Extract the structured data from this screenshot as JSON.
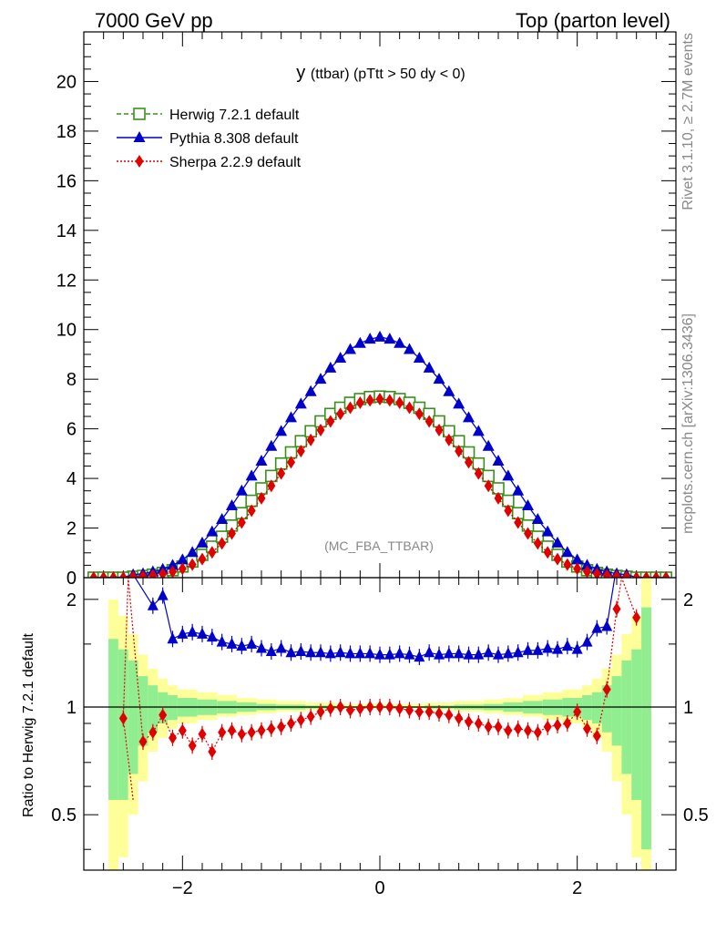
{
  "header": {
    "left": "7000 GeV pp",
    "right": "Top (parton level)"
  },
  "side_labels": {
    "rivet": "Rivet 3.1.10, ≥ 2.7M events",
    "mcplots": "mcplots.cern.ch [arXiv:1306.3436]"
  },
  "plot": {
    "title_main": "y",
    "title_sub": "(ttbar) (pTtt > 50 dy < 0)",
    "watermark": "(MC_FBA_TTBAR)"
  },
  "chart_data": [
    {
      "type": "line",
      "panel": "main",
      "xlim": [
        -3.0,
        3.0
      ],
      "ylim": [
        0,
        22
      ],
      "yticks": [
        0,
        2,
        4,
        6,
        8,
        10,
        12,
        14,
        16,
        18,
        20
      ],
      "xticks": [
        -2,
        0,
        2
      ],
      "legend_position": "top-left",
      "series": [
        {
          "name": "Herwig 7.2.1 default",
          "color": "#3a8f1a",
          "marker": "open-square",
          "line": "dashed",
          "x": [
            -2.5,
            -2.4,
            -2.3,
            -2.2,
            -2.1,
            -2.0,
            -1.9,
            -1.8,
            -1.7,
            -1.6,
            -1.5,
            -1.4,
            -1.3,
            -1.2,
            -1.1,
            -1.0,
            -0.9,
            -0.8,
            -0.7,
            -0.6,
            -0.5,
            -0.4,
            -0.3,
            -0.2,
            -0.1,
            0.0,
            0.1,
            0.2,
            0.3,
            0.4,
            0.5,
            0.6,
            0.7,
            0.8,
            0.9,
            1.0,
            1.1,
            1.2,
            1.3,
            1.4,
            1.5,
            1.6,
            1.7,
            1.8,
            1.9,
            2.0,
            2.1,
            2.2,
            2.3,
            2.4,
            2.5
          ],
          "y": [
            0.04,
            0.07,
            0.12,
            0.19,
            0.3,
            0.45,
            0.65,
            0.92,
            1.25,
            1.65,
            2.1,
            2.6,
            3.1,
            3.6,
            4.1,
            4.6,
            5.05,
            5.5,
            5.9,
            6.3,
            6.6,
            6.85,
            7.05,
            7.2,
            7.28,
            7.3,
            7.28,
            7.2,
            7.05,
            6.85,
            6.6,
            6.3,
            5.9,
            5.5,
            5.05,
            4.6,
            4.1,
            3.6,
            3.1,
            2.6,
            2.1,
            1.65,
            1.25,
            0.92,
            0.65,
            0.45,
            0.3,
            0.19,
            0.12,
            0.07,
            0.04
          ]
        },
        {
          "name": "Pythia 8.308 default",
          "color": "#0000cc",
          "marker": "filled-triangle",
          "line": "solid",
          "x": [
            -2.5,
            -2.4,
            -2.3,
            -2.2,
            -2.1,
            -2.0,
            -1.9,
            -1.8,
            -1.7,
            -1.6,
            -1.5,
            -1.4,
            -1.3,
            -1.2,
            -1.1,
            -1.0,
            -0.9,
            -0.8,
            -0.7,
            -0.6,
            -0.5,
            -0.4,
            -0.3,
            -0.2,
            -0.1,
            0.0,
            0.1,
            0.2,
            0.3,
            0.4,
            0.5,
            0.6,
            0.7,
            0.8,
            0.9,
            1.0,
            1.1,
            1.2,
            1.3,
            1.4,
            1.5,
            1.6,
            1.7,
            1.8,
            1.9,
            2.0,
            2.1,
            2.2,
            2.3,
            2.4,
            2.5
          ],
          "y": [
            0.12,
            0.16,
            0.24,
            0.34,
            0.5,
            0.72,
            1.02,
            1.4,
            1.85,
            2.35,
            2.9,
            3.5,
            4.1,
            4.7,
            5.3,
            5.9,
            6.45,
            7.0,
            7.5,
            8.0,
            8.45,
            8.85,
            9.2,
            9.45,
            9.62,
            9.7,
            9.62,
            9.45,
            9.2,
            8.85,
            8.45,
            8.0,
            7.5,
            7.0,
            6.45,
            5.9,
            5.3,
            4.7,
            4.1,
            3.5,
            2.9,
            2.35,
            1.85,
            1.4,
            1.02,
            0.72,
            0.5,
            0.34,
            0.24,
            0.16,
            0.12
          ]
        },
        {
          "name": "Sherpa 2.2.9 default",
          "color": "#e00000",
          "marker": "filled-diamond",
          "line": "dotted",
          "x": [
            -2.5,
            -2.4,
            -2.3,
            -2.2,
            -2.1,
            -2.0,
            -1.9,
            -1.8,
            -1.7,
            -1.6,
            -1.5,
            -1.4,
            -1.3,
            -1.2,
            -1.1,
            -1.0,
            -0.9,
            -0.8,
            -0.7,
            -0.6,
            -0.5,
            -0.4,
            -0.3,
            -0.2,
            -0.1,
            0.0,
            0.1,
            0.2,
            0.3,
            0.4,
            0.5,
            0.6,
            0.7,
            0.8,
            0.9,
            1.0,
            1.1,
            1.2,
            1.3,
            1.4,
            1.5,
            1.6,
            1.7,
            1.8,
            1.9,
            2.0,
            2.1,
            2.2,
            2.3,
            2.4,
            2.5
          ],
          "y": [
            0.03,
            0.05,
            0.09,
            0.15,
            0.24,
            0.36,
            0.53,
            0.75,
            1.02,
            1.38,
            1.78,
            2.22,
            2.7,
            3.2,
            3.7,
            4.2,
            4.65,
            5.1,
            5.55,
            5.95,
            6.3,
            6.6,
            6.85,
            7.05,
            7.15,
            7.2,
            7.15,
            7.05,
            6.85,
            6.6,
            6.3,
            5.95,
            5.55,
            5.1,
            4.65,
            4.2,
            3.7,
            3.2,
            2.7,
            2.22,
            1.78,
            1.38,
            1.02,
            0.75,
            0.53,
            0.36,
            0.24,
            0.15,
            0.09,
            0.05,
            0.03
          ]
        }
      ]
    },
    {
      "type": "line",
      "panel": "ratio",
      "ylabel": "Ratio to Herwig 7.2.1 default",
      "xlim": [
        -3.0,
        3.0
      ],
      "ylim": [
        0.35,
        2.3
      ],
      "yticks": [
        0.5,
        1,
        2
      ],
      "yticklabels": [
        "0.5",
        "1",
        "2"
      ],
      "xticks": [
        -2,
        0,
        2
      ],
      "reference_line": 1,
      "bands": {
        "x_edges": [
          -2.75,
          -2.65,
          -2.55,
          -2.45,
          -2.35,
          -2.25,
          -2.15,
          -2.05,
          -1.85,
          -1.65,
          -1.45,
          -1.25,
          -1.05,
          -0.75,
          -0.45,
          0.45,
          0.75,
          1.05,
          1.25,
          1.45,
          1.65,
          1.85,
          2.05,
          2.15,
          2.25,
          2.35,
          2.45,
          2.55,
          2.65,
          2.75
        ],
        "inner": [
          0.55,
          0.55,
          0.65,
          0.78,
          0.85,
          0.9,
          0.92,
          0.94,
          0.95,
          0.96,
          0.97,
          0.98,
          0.985,
          0.99,
          0.995,
          0.99,
          0.985,
          0.98,
          0.97,
          0.96,
          0.95,
          0.94,
          0.92,
          0.9,
          0.85,
          0.78,
          0.65,
          0.55,
          0.4
        ],
        "inner_hi": [
          1.55,
          1.45,
          1.35,
          1.22,
          1.15,
          1.1,
          1.08,
          1.06,
          1.05,
          1.04,
          1.03,
          1.02,
          1.015,
          1.01,
          1.005,
          1.01,
          1.015,
          1.02,
          1.03,
          1.04,
          1.05,
          1.06,
          1.08,
          1.1,
          1.15,
          1.22,
          1.35,
          1.45,
          1.9
        ],
        "outer_lo": [
          0.3,
          0.38,
          0.5,
          0.62,
          0.75,
          0.82,
          0.87,
          0.9,
          0.92,
          0.94,
          0.95,
          0.96,
          0.97,
          0.98,
          0.99,
          0.98,
          0.97,
          0.96,
          0.95,
          0.94,
          0.92,
          0.9,
          0.87,
          0.82,
          0.75,
          0.62,
          0.5,
          0.38,
          0.3
        ],
        "outer_hi": [
          2.0,
          1.8,
          1.6,
          1.4,
          1.28,
          1.2,
          1.15,
          1.12,
          1.1,
          1.08,
          1.06,
          1.05,
          1.04,
          1.03,
          1.02,
          1.03,
          1.04,
          1.05,
          1.06,
          1.08,
          1.1,
          1.12,
          1.15,
          1.2,
          1.28,
          1.4,
          1.6,
          1.8,
          2.3
        ],
        "inner_color": "#90ee90",
        "outer_color": "#ffff99"
      },
      "series": [
        {
          "name": "Pythia 8.308 default",
          "color": "#0000cc",
          "x": [
            -2.3,
            -2.2,
            -2.1,
            -2.0,
            -1.9,
            -1.8,
            -1.7,
            -1.6,
            -1.5,
            -1.4,
            -1.3,
            -1.2,
            -1.1,
            -1.0,
            -0.9,
            -0.8,
            -0.7,
            -0.6,
            -0.5,
            -0.4,
            -0.3,
            -0.2,
            -0.1,
            0.0,
            0.1,
            0.2,
            0.3,
            0.4,
            0.5,
            0.6,
            0.7,
            0.8,
            0.9,
            1.0,
            1.1,
            1.2,
            1.3,
            1.4,
            1.5,
            1.6,
            1.7,
            1.8,
            1.9,
            2.0,
            2.1,
            2.2,
            2.3
          ],
          "y": [
            1.92,
            2.05,
            1.55,
            1.6,
            1.62,
            1.6,
            1.57,
            1.52,
            1.5,
            1.48,
            1.5,
            1.46,
            1.43,
            1.46,
            1.42,
            1.43,
            1.42,
            1.42,
            1.41,
            1.42,
            1.41,
            1.41,
            1.41,
            1.4,
            1.4,
            1.41,
            1.4,
            1.38,
            1.42,
            1.4,
            1.41,
            1.41,
            1.4,
            1.4,
            1.42,
            1.4,
            1.41,
            1.42,
            1.44,
            1.44,
            1.46,
            1.45,
            1.48,
            1.45,
            1.52,
            1.66,
            1.68
          ]
        },
        {
          "name": "Sherpa 2.2.9 default",
          "color": "#e00000",
          "x": [
            -2.6,
            -2.4,
            -2.3,
            -2.2,
            -2.1,
            -2.0,
            -1.9,
            -1.8,
            -1.7,
            -1.6,
            -1.5,
            -1.4,
            -1.3,
            -1.2,
            -1.1,
            -1.0,
            -0.9,
            -0.8,
            -0.7,
            -0.6,
            -0.5,
            -0.4,
            -0.3,
            -0.2,
            -0.1,
            0.0,
            0.1,
            0.2,
            0.3,
            0.4,
            0.5,
            0.6,
            0.7,
            0.8,
            0.9,
            1.0,
            1.1,
            1.2,
            1.3,
            1.4,
            1.5,
            1.6,
            1.7,
            1.8,
            1.9,
            2.0,
            2.1,
            2.2,
            2.3,
            2.4,
            2.6
          ],
          "y": [
            0.93,
            0.8,
            0.85,
            0.95,
            0.82,
            0.86,
            0.78,
            0.84,
            0.75,
            0.85,
            0.86,
            0.84,
            0.85,
            0.86,
            0.87,
            0.88,
            0.9,
            0.92,
            0.94,
            0.97,
            0.99,
            1.0,
            0.98,
            0.99,
            1.0,
            1.0,
            1.0,
            0.99,
            0.98,
            0.97,
            0.97,
            0.96,
            0.95,
            0.93,
            0.91,
            0.9,
            0.88,
            0.88,
            0.86,
            0.87,
            0.86,
            0.85,
            0.88,
            0.89,
            0.9,
            0.97,
            0.87,
            0.83,
            1.12,
            1.88,
            1.78
          ]
        }
      ]
    }
  ]
}
